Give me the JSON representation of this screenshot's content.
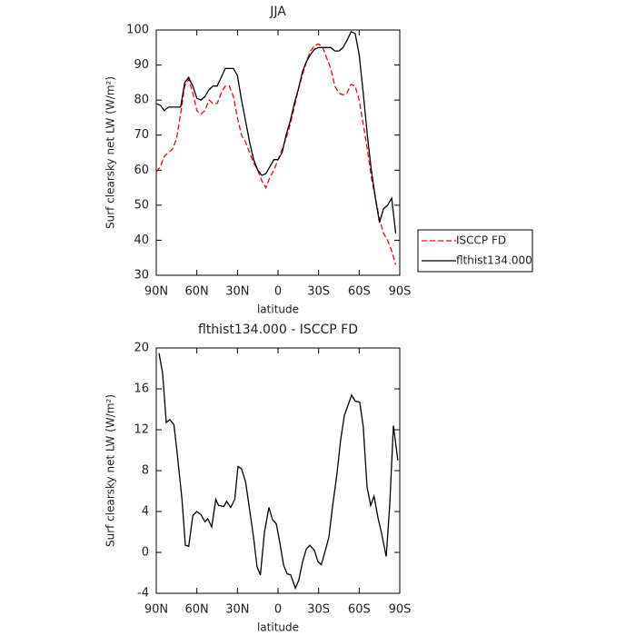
{
  "chart_data": [
    {
      "type": "line",
      "title": "JJA",
      "xlabel": "latitude",
      "ylabel": "Surf clearsky net LW (W/m²)",
      "x": [
        90,
        87,
        84,
        81,
        78,
        75,
        72,
        69,
        66,
        63,
        60,
        57,
        54,
        51,
        48,
        45,
        42,
        39,
        36,
        33,
        30,
        27,
        24,
        21,
        18,
        15,
        12,
        9,
        6,
        3,
        0,
        -3,
        -6,
        -9,
        -12,
        -15,
        -18,
        -21,
        -24,
        -27,
        -30,
        -33,
        -36,
        -39,
        -42,
        -45,
        -48,
        -51,
        -54,
        -57,
        -60,
        -63,
        -66,
        -69,
        -72,
        -75,
        -78,
        -81,
        -84,
        -87
      ],
      "series": [
        {
          "name": "ISCCP FD",
          "color": "#ff0000",
          "dashed": true,
          "values": [
            59.5,
            61,
            64,
            65,
            66,
            69,
            76,
            84,
            86,
            82,
            77,
            76,
            77,
            80,
            79,
            79,
            82,
            84,
            84,
            81,
            75,
            70,
            68,
            65,
            62,
            60,
            57,
            55,
            58,
            60,
            63,
            66,
            69,
            73,
            78,
            83,
            87,
            91,
            94,
            95.5,
            96,
            95,
            92,
            89,
            84,
            82,
            81.5,
            82,
            84.5,
            84,
            80,
            73,
            66,
            58,
            52,
            46,
            42,
            40,
            37,
            33
          ]
        },
        {
          "name": "flthist134.000",
          "color": "#000000",
          "dashed": false,
          "values": [
            79,
            78.5,
            77,
            78,
            78,
            78,
            78,
            85,
            86.5,
            84,
            80.5,
            80,
            81,
            83,
            84,
            84,
            86.5,
            89,
            89,
            89,
            87,
            80,
            74,
            68,
            63,
            60,
            58.5,
            59,
            61,
            63,
            63,
            65,
            70,
            74,
            79,
            83,
            88,
            91,
            93,
            94.5,
            95,
            95,
            95,
            95,
            94,
            94,
            95,
            97,
            99.5,
            99,
            93,
            82,
            70,
            60,
            52,
            45,
            49,
            50,
            52,
            42
          ]
        }
      ],
      "xlim": [
        90,
        -90
      ],
      "ylim": [
        30,
        100
      ],
      "xticks": [
        {
          "value": 90,
          "label": "90N"
        },
        {
          "value": 60,
          "label": "60N"
        },
        {
          "value": 30,
          "label": "30N"
        },
        0,
        {
          "value": -30,
          "label": "30S"
        },
        {
          "value": -60,
          "label": "60S"
        },
        {
          "value": -90,
          "label": "90S"
        }
      ],
      "yticks": [
        30,
        40,
        50,
        60,
        70,
        80,
        90,
        100
      ],
      "legend": "outside right"
    },
    {
      "type": "line",
      "title": "flthist134.000 - ISCCP FD",
      "xlabel": "latitude",
      "ylabel": "Surf clearsky net LW (W/m²)",
      "x": [
        88,
        85.3,
        82.6,
        80,
        77,
        74.6,
        71,
        68.5,
        66,
        63,
        60,
        57,
        54,
        52,
        49,
        46,
        44,
        40,
        38,
        35,
        32,
        29.6,
        27,
        24,
        21,
        18,
        15.5,
        13,
        10,
        6.7,
        4,
        1.3,
        -1.3,
        -4,
        -6.7,
        -9.4,
        -12.8,
        -15.4,
        -18,
        -20.8,
        -23.5,
        -26.9,
        -29.5,
        -32,
        -35,
        -37.6,
        -40.3,
        -43.6,
        -46.3,
        -49,
        -54.4,
        -57,
        -60.4,
        -63,
        -65.8,
        -68.5,
        -71,
        -73.9,
        -76.5,
        -80,
        -82.6,
        -85.3,
        -88.6
      ],
      "values": [
        19.5,
        17.5,
        12.7,
        13,
        12.5,
        9.8,
        5.2,
        0.7,
        0.6,
        3.6,
        4,
        3.7,
        3,
        3.3,
        2.5,
        5.2,
        4.6,
        4.5,
        5,
        4.4,
        5.2,
        8.4,
        8.2,
        6.9,
        4.2,
        1.4,
        -1.4,
        -2.2,
        2,
        4.4,
        3.2,
        2.8,
        1,
        -1.2,
        -2.1,
        -2.2,
        -3.5,
        -2.7,
        -1,
        0.3,
        0.7,
        0.2,
        -0.9,
        -1.2,
        0.2,
        1.5,
        4.5,
        7.7,
        11,
        13.4,
        15.4,
        14.8,
        14.7,
        12.3,
        6.4,
        4.6,
        5.5,
        3.4,
        1.9,
        -0.4,
        4.7,
        12.4,
        9
      ],
      "color": "#000000",
      "xlim": [
        90,
        -90
      ],
      "ylim": [
        -4,
        20
      ],
      "xticks": [
        {
          "value": 90,
          "label": "90N"
        },
        {
          "value": 60,
          "label": "60N"
        },
        {
          "value": 30,
          "label": "30N"
        },
        0,
        {
          "value": -30,
          "label": "30S"
        },
        {
          "value": -60,
          "label": "60S"
        },
        {
          "value": -90,
          "label": "90S"
        }
      ],
      "yticks": [
        -4,
        0,
        4,
        8,
        12,
        16,
        20
      ]
    }
  ]
}
